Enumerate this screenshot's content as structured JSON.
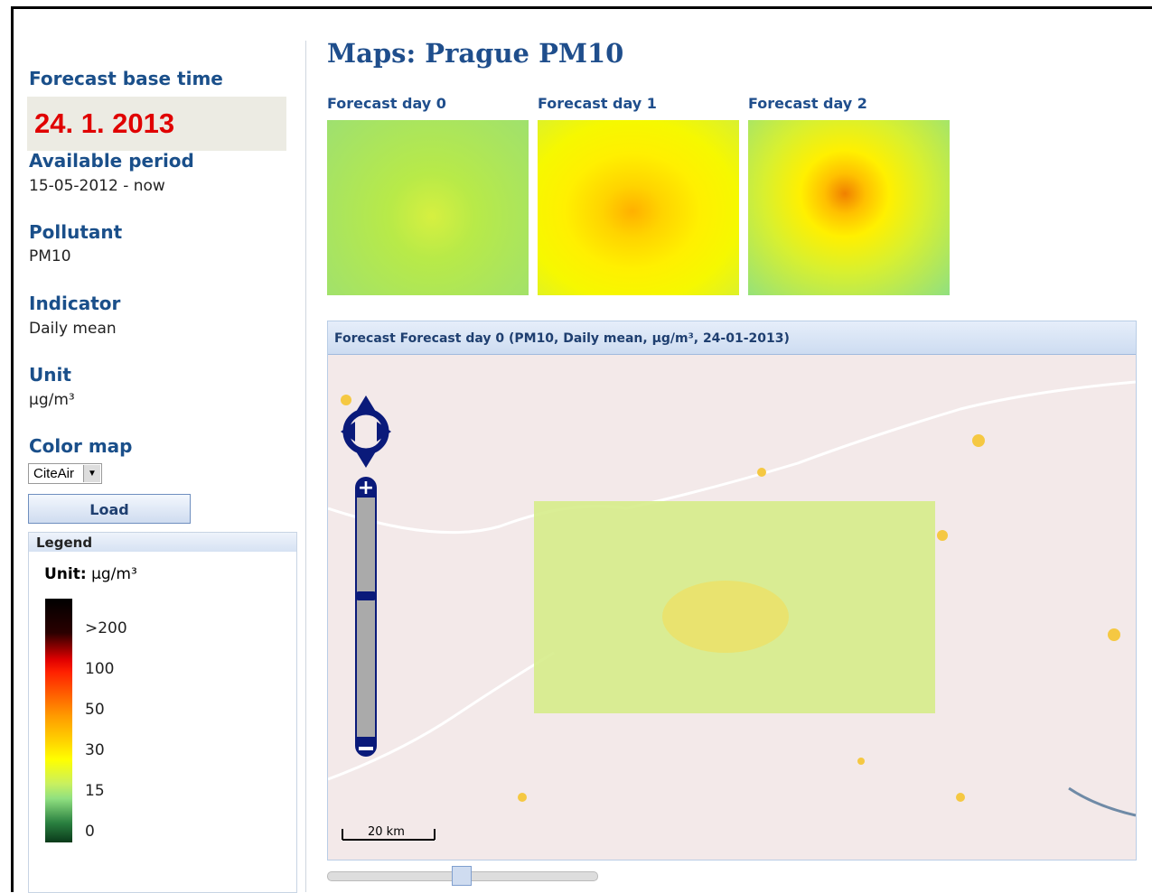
{
  "sidebar": {
    "base_time": {
      "label": "Forecast base time",
      "value": "24. 1. 2013"
    },
    "period": {
      "label": "Available period",
      "value": "15-05-2012 - now"
    },
    "pollutant": {
      "label": "Pollutant",
      "value": "PM10"
    },
    "indicator": {
      "label": "Indicator",
      "value": "Daily mean"
    },
    "unit": {
      "label": "Unit",
      "value": "µg/m³"
    },
    "color_map": {
      "label": "Color map",
      "value": "CiteAir"
    },
    "button": "Load",
    "legend": {
      "title": "Legend",
      "unit_label": "Unit:",
      "unit": "µg/m³",
      "labels": [
        ">200",
        "100",
        "50",
        "30",
        "15",
        "0"
      ]
    }
  },
  "main": {
    "title": "Maps: Prague PM10",
    "thumbnails": [
      "Forecast day 0",
      "Forecast day 1",
      "Forecast day 2"
    ],
    "map_header": "Forecast Forecast day 0 (PM10, Daily mean, µg/m³, 24-01-2013)",
    "scale": "20 km"
  }
}
